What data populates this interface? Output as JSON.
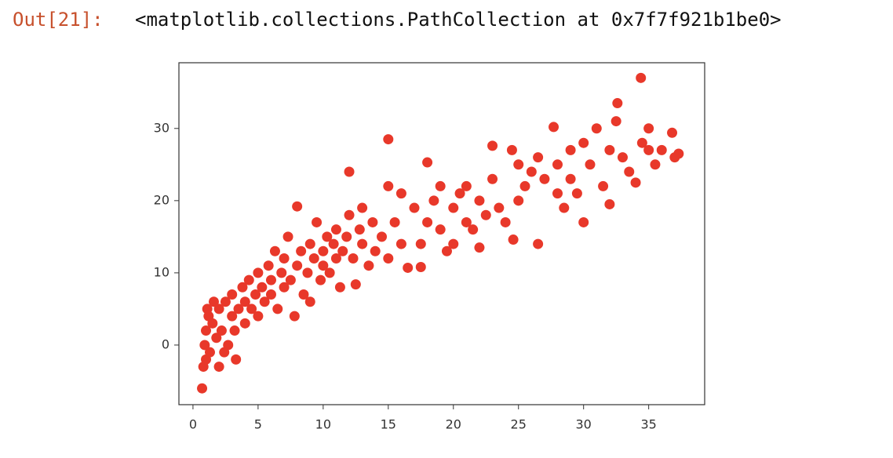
{
  "prompt": "Out[21]:",
  "output_text": "<matplotlib.collections.PathCollection at 0x7f7f921b1be0>",
  "chart_data": {
    "type": "scatter",
    "color": "#e8382a",
    "xlim": [
      -1.08,
      39.3
    ],
    "ylim": [
      -8.26,
      39.1
    ],
    "xticks": [
      0,
      5,
      10,
      15,
      20,
      25,
      30,
      35
    ],
    "yticks": [
      0,
      10,
      20,
      30
    ],
    "grid": false,
    "x": [
      0.7,
      0.8,
      0.9,
      1,
      1,
      1.2,
      1.3,
      1.5,
      1.6,
      1.8,
      2,
      2,
      2.2,
      2.5,
      2.7,
      3,
      3,
      3.2,
      3.5,
      3.8,
      4,
      4,
      4.3,
      4.5,
      4.8,
      5,
      5,
      5.3,
      5.5,
      5.8,
      6,
      6,
      6.3,
      6.5,
      6.8,
      7,
      7,
      7.3,
      7.5,
      7.8,
      8,
      8,
      8.3,
      8.5,
      8.8,
      9,
      9,
      9.3,
      9.5,
      9.8,
      10,
      10,
      10.3,
      10.5,
      10.8,
      11,
      11,
      11.3,
      11.5,
      11.8,
      12,
      12,
      12.3,
      12.5,
      12.8,
      13,
      13,
      13.5,
      13.8,
      14,
      14.5,
      15,
      15,
      15,
      15.5,
      16,
      16,
      16.5,
      17,
      17.5,
      17.5,
      18,
      18,
      18.5,
      19,
      19,
      19.5,
      20,
      20,
      20.5,
      21,
      21,
      21.5,
      22,
      22,
      22.5,
      23,
      23,
      23.5,
      24,
      24.5,
      24.6,
      25,
      25,
      25.5,
      26,
      26.5,
      26.5,
      27,
      27.7,
      28,
      28,
      28.5,
      29,
      29,
      29.5,
      30,
      30,
      30.5,
      31,
      31.5,
      32,
      32,
      32.6,
      32.5,
      33,
      33.5,
      34,
      34.4,
      34.5,
      35,
      35,
      35.5,
      36,
      36.8,
      37,
      37.3,
      1.1,
      2.4,
      3.3
    ],
    "y": [
      -6,
      -3,
      0,
      2,
      -2,
      4,
      -1,
      3,
      6,
      1,
      5,
      -3,
      2,
      6,
      0,
      4,
      7,
      2,
      5,
      8,
      3,
      6,
      9,
      5,
      7,
      10,
      4,
      8,
      6,
      11,
      7,
      9,
      13,
      5,
      10,
      8,
      12,
      15,
      9,
      4,
      19.2,
      11,
      13,
      7,
      10,
      14,
      6,
      12,
      17,
      9,
      13,
      11,
      15,
      10,
      14,
      12,
      16,
      8,
      13,
      15,
      24,
      18,
      12,
      8.4,
      16,
      14,
      19,
      11,
      17,
      13,
      15,
      28.5,
      22,
      12,
      17,
      14,
      21,
      10.7,
      19,
      10.8,
      14,
      25.3,
      17,
      20,
      22,
      16,
      13,
      19,
      14,
      21,
      22,
      17,
      16,
      20,
      13.5,
      18,
      27.6,
      23,
      19,
      17,
      27,
      14.6,
      20,
      25,
      22,
      24,
      14,
      26,
      23,
      30.2,
      21,
      25,
      19,
      27,
      23,
      21,
      17,
      28,
      25,
      30,
      22,
      27,
      19.5,
      33.5,
      31,
      26,
      24,
      22.5,
      37,
      28,
      30,
      27,
      25,
      27,
      29.4,
      26,
      26.5,
      5,
      -1,
      -2
    ]
  }
}
